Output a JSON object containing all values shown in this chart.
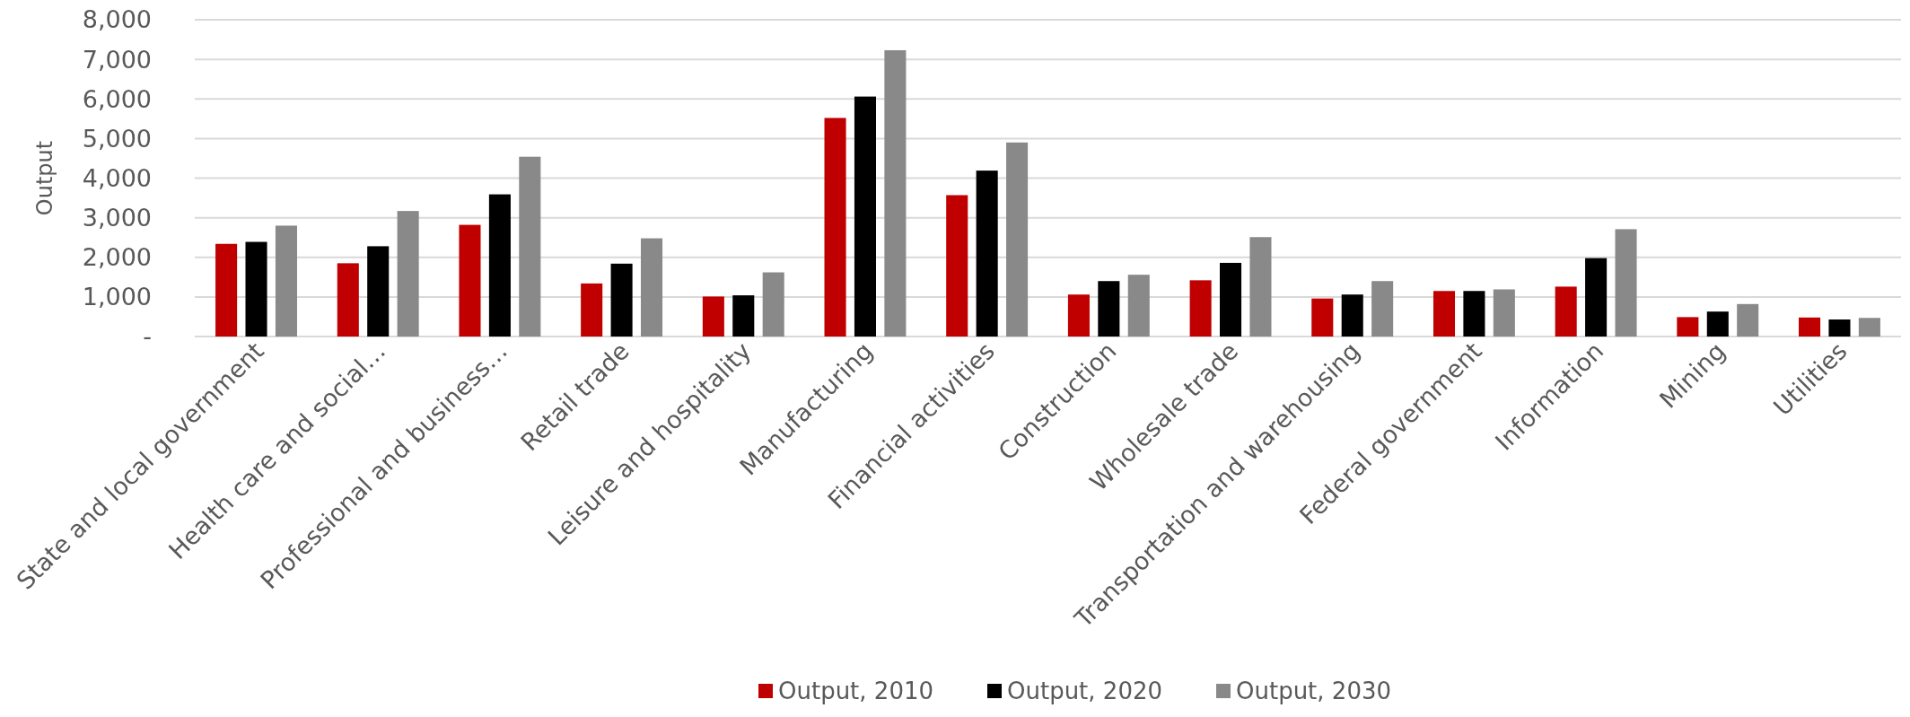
{
  "chart_data": {
    "type": "bar",
    "ylabel": "Output",
    "categories": [
      "State and local government",
      "Health care and social…",
      "Professional and business…",
      "Retail trade",
      "Leisure and hospitality",
      "Manufacturing",
      "Financial activities",
      "Construction",
      "Wholesale trade",
      "Transportation and warehousing",
      "Federal government",
      "Information",
      "Mining",
      "Utilities"
    ],
    "series": [
      {
        "name": "Output, 2010",
        "color": "#c00000",
        "values": [
          2340,
          1850,
          2820,
          1340,
          1010,
          5520,
          3570,
          1060,
          1420,
          960,
          1150,
          1260,
          490,
          480
        ]
      },
      {
        "name": "Output, 2020",
        "color": "#000000",
        "values": [
          2390,
          2280,
          3590,
          1840,
          1040,
          6060,
          4190,
          1400,
          1860,
          1060,
          1150,
          1980,
          630,
          430
        ]
      },
      {
        "name": "Output, 2030",
        "color": "#898989",
        "values": [
          2800,
          3170,
          4540,
          2480,
          1620,
          7230,
          4900,
          1560,
          2510,
          1400,
          1190,
          2710,
          820,
          470
        ]
      }
    ],
    "ylim": [
      0,
      8000
    ],
    "yticks": [
      {
        "value": 0,
        "label": "-"
      },
      {
        "value": 1000,
        "label": "1,000"
      },
      {
        "value": 2000,
        "label": "2,000"
      },
      {
        "value": 3000,
        "label": "3,000"
      },
      {
        "value": 4000,
        "label": "4,000"
      },
      {
        "value": 5000,
        "label": "5,000"
      },
      {
        "value": 6000,
        "label": "6,000"
      },
      {
        "value": 7000,
        "label": "7,000"
      },
      {
        "value": 8000,
        "label": "8,000"
      }
    ],
    "grid": "y",
    "legend": "bottom"
  }
}
